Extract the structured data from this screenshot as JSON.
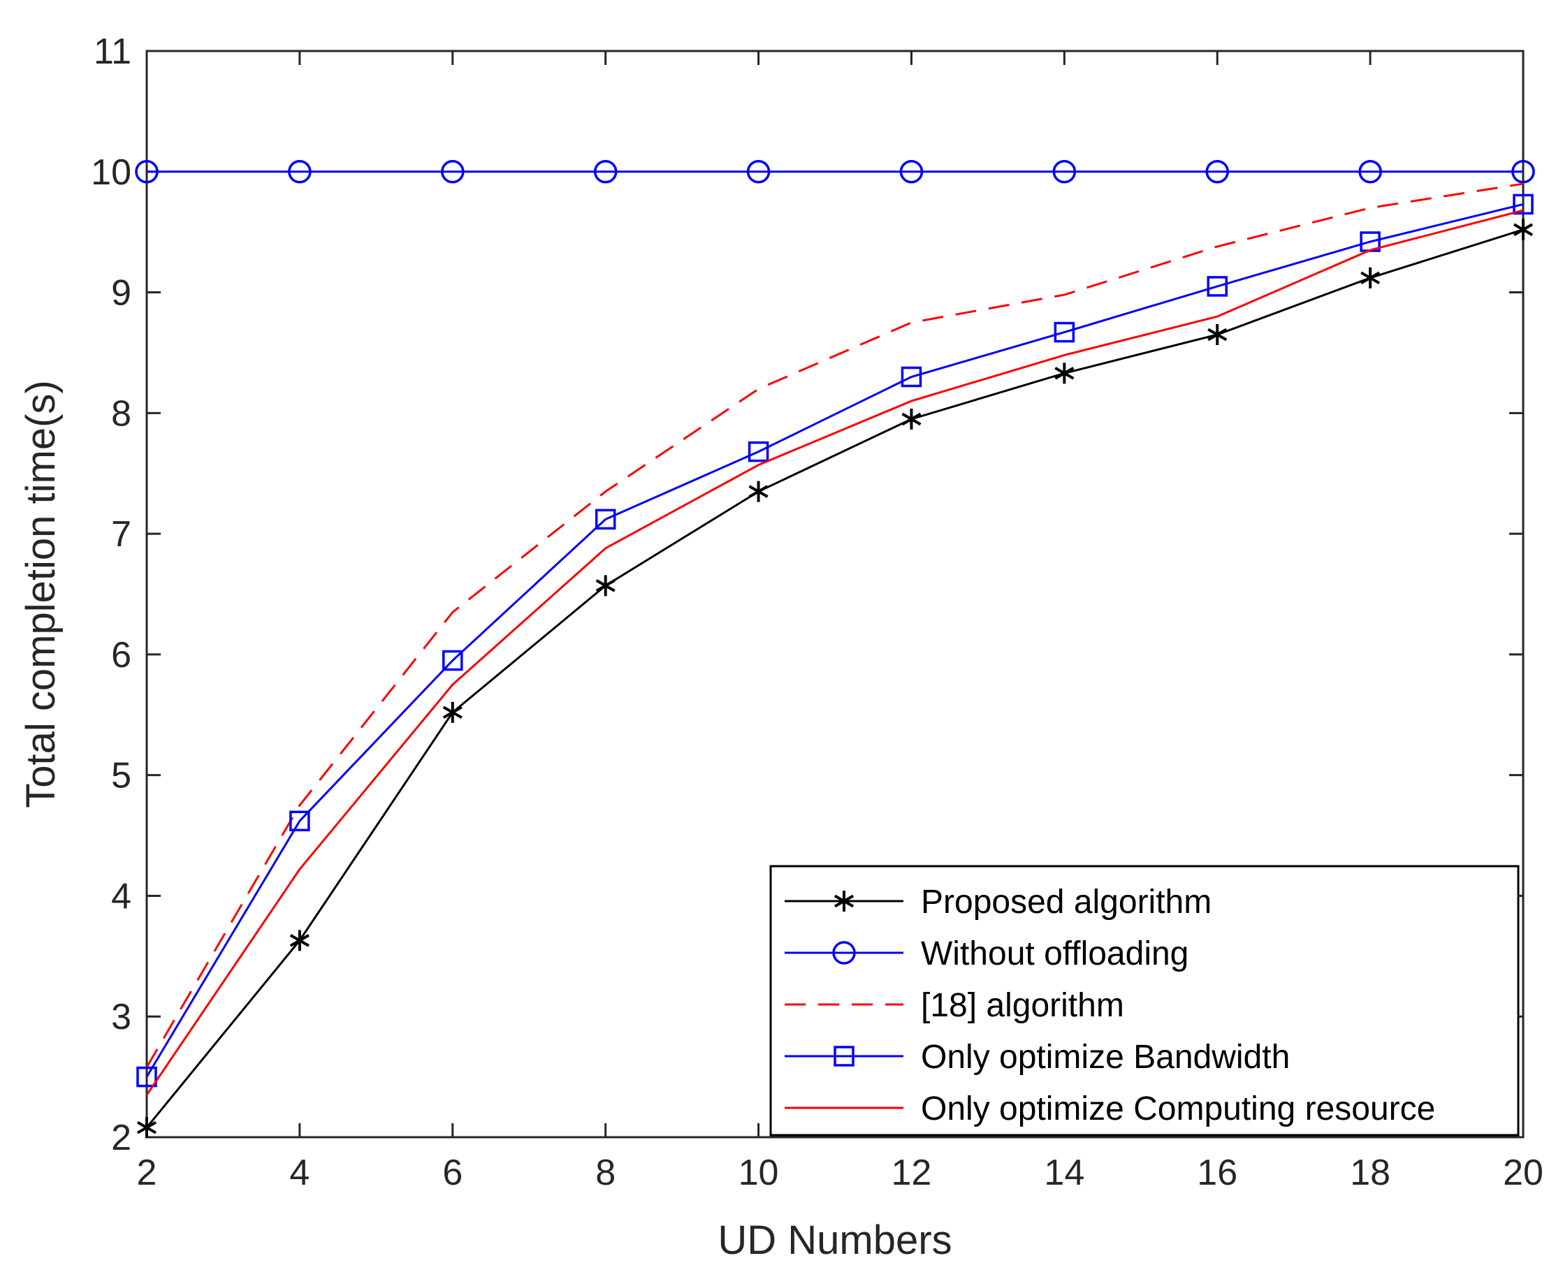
{
  "chart_data": {
    "type": "line",
    "title": "",
    "xlabel": "UD Numbers",
    "ylabel": "Total completion time(s)",
    "xlim": [
      2,
      20
    ],
    "ylim": [
      2,
      11
    ],
    "xticks": [
      2,
      4,
      6,
      8,
      10,
      12,
      14,
      16,
      18,
      20
    ],
    "yticks": [
      2,
      3,
      4,
      5,
      6,
      7,
      8,
      9,
      10,
      11
    ],
    "grid": false,
    "legend_position": "bottom-right",
    "x": [
      2,
      4,
      6,
      8,
      10,
      12,
      14,
      16,
      18,
      20
    ],
    "series": [
      {
        "name": "Proposed algorithm",
        "color": "#000000",
        "dash": "solid",
        "marker": "asterisk",
        "values": [
          2.08,
          3.63,
          5.52,
          6.57,
          7.35,
          7.95,
          8.33,
          8.65,
          9.12,
          9.52
        ]
      },
      {
        "name": "Without offloading",
        "color": "#0000ff",
        "dash": "solid",
        "marker": "circle",
        "values": [
          10,
          10,
          10,
          10,
          10,
          10,
          10,
          10,
          10,
          10
        ]
      },
      {
        "name": "[18] algorithm",
        "color": "#ff0000",
        "dash": "dashed",
        "marker": "none",
        "values": [
          2.58,
          4.75,
          6.35,
          7.35,
          8.2,
          8.75,
          8.98,
          9.38,
          9.7,
          9.9
        ]
      },
      {
        "name": "Only optimize Bandwidth",
        "color": "#0000ff",
        "dash": "solid",
        "marker": "square",
        "values": [
          2.5,
          4.62,
          5.95,
          7.12,
          7.68,
          8.3,
          8.67,
          9.05,
          9.42,
          9.73
        ]
      },
      {
        "name": "Only optimize Computing resource",
        "color": "#ff0000",
        "dash": "solid",
        "marker": "none",
        "values": [
          2.35,
          4.22,
          5.75,
          6.88,
          7.57,
          8.1,
          8.48,
          8.8,
          9.35,
          9.68
        ]
      }
    ]
  }
}
